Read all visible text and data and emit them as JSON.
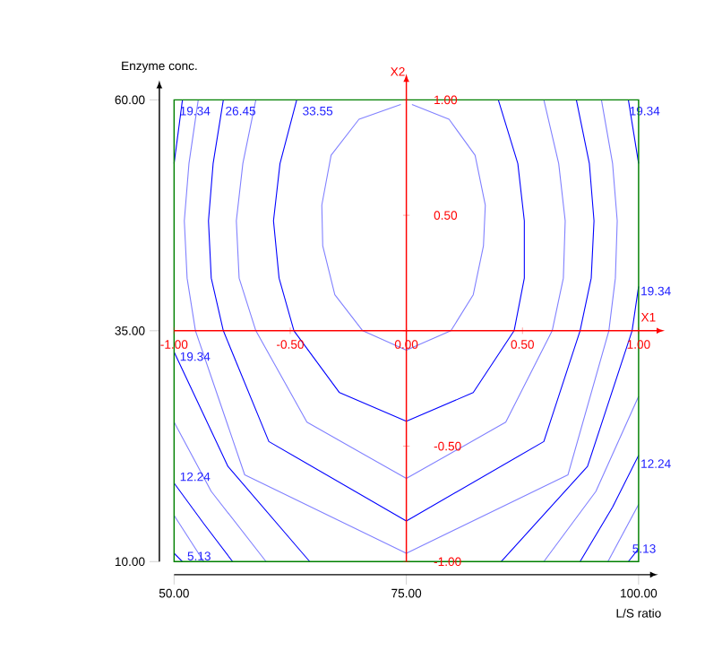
{
  "chart_data": {
    "type": "line",
    "xlabel": "L/S ratio",
    "ylabel": "Enzyme conc.",
    "x2label": "X1",
    "y2label": "X2",
    "marker": "none",
    "xlim": [
      50,
      100
    ],
    "ylim": [
      10,
      60
    ],
    "xticks": [
      {
        "value": 50,
        "label": "50.00"
      },
      {
        "value": 75,
        "label": "75.00"
      },
      {
        "value": 100,
        "label": "100.00"
      }
    ],
    "yticks": [
      {
        "value": 10,
        "label": "10.00"
      },
      {
        "value": 35,
        "label": "35.00"
      },
      {
        "value": 60,
        "label": "60.00"
      }
    ],
    "x2lim": [
      -1,
      1
    ],
    "y2lim": [
      -1,
      1
    ],
    "x2ticks": [
      {
        "value": -1,
        "label": "-1.00"
      },
      {
        "value": -0.5,
        "label": "-0.50"
      },
      {
        "value": 0,
        "label": "0.00"
      },
      {
        "value": 0.5,
        "label": "0.50"
      },
      {
        "value": 1,
        "label": "1.00"
      }
    ],
    "y2ticks": [
      {
        "value": -1,
        "label": "-1.00"
      },
      {
        "value": -0.5,
        "label": "-0.50"
      },
      {
        "value": 0,
        "label": null
      },
      {
        "value": 0.5,
        "label": "0.50"
      },
      {
        "value": 1,
        "label": "1.00"
      }
    ],
    "series": [
      {
        "color": "#8080ff",
        "x": [
          75.6,
          79.6,
          82.4,
          83.5,
          83.3,
          82.2,
          79.8,
          75,
          70.3,
          67.3,
          66,
          65.9,
          66.9,
          69.9,
          74.4
        ],
        "values": [
          59.5,
          57.9,
          54,
          48.6,
          44.2,
          38.9,
          35,
          32.9,
          35,
          38.9,
          44.2,
          48.6,
          54,
          57.9,
          59.5
        ]
      },
      {
        "color": "#0000ff",
        "x": [
          63.2,
          61.4,
          60.7,
          61.3,
          62.9,
          67.8,
          75,
          82.2,
          86.6,
          87.7,
          87.7,
          87.0,
          84.9
        ],
        "values": [
          60,
          53.1,
          46.9,
          40.7,
          35,
          28.3,
          25.2,
          28.3,
          35,
          40.7,
          46.9,
          53.1,
          60
        ]
      },
      {
        "color": "#8080ff",
        "x": [
          58.8,
          57.4,
          56.7,
          57.0,
          58.8,
          64.3,
          75,
          85.7,
          90.7,
          91.9,
          92.1,
          91.4,
          89.8
        ],
        "values": [
          60,
          53.1,
          46.9,
          40.7,
          35,
          25.1,
          19.0,
          25.1,
          35,
          40.7,
          46.9,
          53.1,
          60
        ]
      },
      {
        "color": "#0000ff",
        "x": [
          55.3,
          54.2,
          53.7,
          54.0,
          55.3,
          60.2,
          75,
          89.8,
          93.7,
          94.9,
          95.2,
          94.7,
          93.3
        ],
        "values": [
          60,
          53.1,
          46.9,
          40.7,
          35,
          23.0,
          14.4,
          23.0,
          35,
          40.7,
          46.9,
          53.1,
          60
        ]
      },
      {
        "color": "#8080ff",
        "x": [
          52.6,
          51.6,
          51.1,
          51.4,
          52.3,
          57.6,
          75,
          92.4,
          96.8,
          97.5,
          97.7,
          97.2,
          96.0
        ],
        "values": [
          60,
          53.1,
          46.9,
          40.7,
          35,
          19.4,
          10.9,
          19.4,
          35,
          40.7,
          46.9,
          53.1,
          60
        ]
      },
      {
        "color": "#0000ff",
        "x": [
          50.9,
          50
        ],
        "values": [
          60,
          53.1
        ]
      },
      {
        "color": "#0000ff",
        "x": [
          50,
          55.8,
          64.6
        ],
        "values": [
          32.7,
          20.3,
          10
        ]
      },
      {
        "color": "#0000ff",
        "x": [
          85.2,
          94.5,
          99.3,
          100
        ],
        "values": [
          10,
          20.3,
          35,
          39.8
        ]
      },
      {
        "color": "#0000ff",
        "x": [
          100,
          98.9
        ],
        "values": [
          53.1,
          60
        ]
      },
      {
        "color": "#8080ff",
        "x": [
          50,
          54.0,
          59.9
        ],
        "values": [
          25.1,
          17.6,
          10
        ]
      },
      {
        "color": "#8080ff",
        "x": [
          89.8,
          95.4,
          100
        ],
        "values": [
          10,
          17.6,
          27.9
        ]
      },
      {
        "color": "#0000ff",
        "x": [
          50,
          53.2,
          56.3
        ],
        "values": [
          18.5,
          14.1,
          10
        ]
      },
      {
        "color": "#0000ff",
        "x": [
          93.7,
          97.2,
          100
        ],
        "values": [
          10,
          15.9,
          21.5
        ]
      },
      {
        "color": "#8080ff",
        "x": [
          50,
          53.2
        ],
        "values": [
          15.0,
          10
        ]
      },
      {
        "color": "#8080ff",
        "x": [
          96.7,
          100
        ],
        "values": [
          10,
          16.2
        ]
      },
      {
        "color": "#0000ff",
        "x": [
          50,
          50.9
        ],
        "values": [
          10.9,
          10
        ]
      },
      {
        "color": "#0000ff",
        "x": [
          98.9,
          100
        ],
        "values": [
          10,
          11.4
        ]
      }
    ],
    "annotations": [
      {
        "text": "19.34",
        "x": 50.4,
        "y": 58.8
      },
      {
        "text": "26.45",
        "x": 55.3,
        "y": 58.8
      },
      {
        "text": "33.55",
        "x": 63.6,
        "y": 58.8
      },
      {
        "text": "19.34",
        "x": 98.8,
        "y": 58.8
      },
      {
        "text": "19.34",
        "x": 100,
        "y": 39.3
      },
      {
        "text": "19.34",
        "x": 50.4,
        "y": 32.2
      },
      {
        "text": "12.24",
        "x": 50.4,
        "y": 19.2
      },
      {
        "text": "12.24",
        "x": 100,
        "y": 20.6
      },
      {
        "text": "5.13",
        "x": 51.2,
        "y": 10.6
      },
      {
        "text": "5.13",
        "x": 99.1,
        "y": 11.4
      }
    ]
  }
}
